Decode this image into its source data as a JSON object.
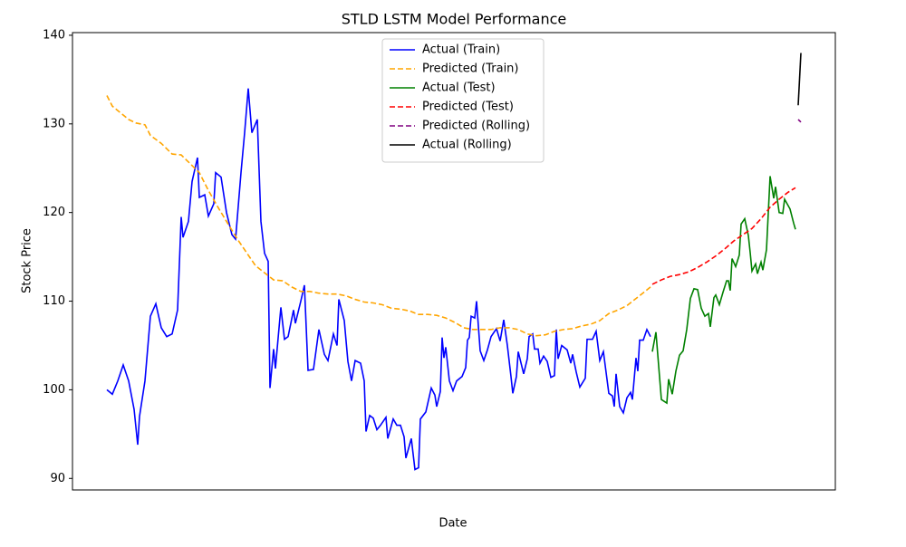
{
  "chart_data": {
    "type": "line",
    "title": "STLD LSTM Model Performance",
    "x_label": "Date",
    "y_label": "Stock Price",
    "xlim": [
      -38,
      804
    ],
    "ylim": [
      88.7,
      140.3
    ],
    "yticks": [
      90,
      100,
      110,
      120,
      130,
      140
    ],
    "legend": "upper center",
    "series": [
      {
        "name": "Actual (Train)",
        "color": "#0000ff",
        "linestyle": "-",
        "x": [
          0,
          6,
          12,
          18,
          24,
          30,
          34,
          36,
          42,
          48,
          54,
          60,
          66,
          72,
          78,
          82,
          84,
          90,
          94,
          100,
          102,
          108,
          112,
          118,
          120,
          126,
          132,
          138,
          142,
          148,
          152,
          156,
          160,
          166,
          170,
          174,
          178,
          180,
          184,
          186,
          192,
          196,
          200,
          206,
          208,
          214,
          218,
          222,
          228,
          234,
          240,
          244,
          250,
          254,
          256,
          262,
          266,
          270,
          274,
          280,
          284,
          286,
          290,
          294,
          298,
          302,
          308,
          310,
          316,
          320,
          324,
          328,
          330,
          336,
          340,
          344,
          346,
          352,
          358,
          362,
          364,
          368,
          370,
          372,
          374,
          378,
          382,
          386,
          392,
          396,
          398,
          400,
          402,
          406,
          408,
          412,
          416,
          420,
          424,
          430,
          434,
          438,
          442,
          446,
          448,
          452,
          454,
          460,
          464,
          466,
          470,
          472,
          476,
          478,
          482,
          486,
          490,
          494,
          496,
          498,
          502,
          508,
          512,
          514,
          518,
          522,
          528,
          530,
          536,
          540,
          544,
          548,
          554,
          558,
          560,
          562,
          566,
          570,
          574,
          578,
          580,
          584,
          586,
          588,
          592,
          596,
          600
        ],
        "values": [
          100,
          99.5,
          101,
          102.8,
          101,
          97.8,
          93.8,
          97,
          101,
          108.3,
          109.7,
          107,
          106,
          106.3,
          109,
          119.5,
          117.2,
          119,
          123.5,
          126.2,
          121.7,
          122,
          119.6,
          121,
          124.5,
          124,
          120,
          117.5,
          117,
          124.5,
          129,
          134,
          129,
          130.5,
          119,
          115.4,
          114.5,
          100.2,
          104.6,
          102.4,
          109.3,
          105.7,
          106,
          109,
          107.5,
          110,
          111.8,
          102.2,
          102.3,
          106.8,
          104,
          103.3,
          106.3,
          105,
          110.2,
          107.8,
          103.2,
          101,
          103.3,
          103,
          101,
          95.3,
          97.1,
          96.8,
          95.5,
          96,
          96.9,
          94.5,
          96.7,
          96,
          96,
          94.7,
          92.3,
          94.5,
          91,
          91.2,
          96.7,
          97.5,
          100.2,
          99.4,
          98.1,
          99.8,
          105.9,
          103.6,
          104.8,
          101,
          99.9,
          101,
          101.5,
          102.5,
          105.6,
          105.9,
          108.3,
          108.1,
          110,
          104.4,
          103.3,
          104.5,
          106,
          106.9,
          105.5,
          107.9,
          105,
          101.5,
          99.6,
          101.5,
          104.3,
          101.8,
          103.5,
          106,
          106.3,
          104.6,
          104.6,
          103,
          103.8,
          103.2,
          101.4,
          101.6,
          106.8,
          103.5,
          105,
          104.5,
          103,
          104,
          102,
          100.3,
          101.3,
          105.7,
          105.7,
          106.6,
          103.3,
          104.3,
          99.6,
          99.3,
          98.1,
          101.8,
          98.1,
          97.4,
          99.1,
          99.7,
          98.9,
          103.6,
          102.1,
          105.6,
          105.6,
          106.8,
          106
        ]
      },
      {
        "name": "Predicted (Train)",
        "color": "#ffa500",
        "linestyle": "--",
        "x": [
          0,
          6,
          12,
          18,
          24,
          32,
          42,
          48,
          60,
          72,
          82,
          92,
          102,
          112,
          122,
          132,
          144,
          154,
          164,
          174,
          184,
          194,
          204,
          214,
          224,
          234,
          244,
          254,
          264,
          274,
          284,
          294,
          304,
          314,
          324,
          334,
          344,
          354,
          364,
          374,
          384,
          394,
          404,
          414,
          424,
          434,
          444,
          454,
          464,
          474,
          484,
          494,
          504,
          514,
          524,
          534,
          544,
          554,
          564,
          574,
          584,
          594,
          600
        ],
        "values": [
          133.2,
          132,
          131.5,
          131,
          130.5,
          130.1,
          129.9,
          128.7,
          127.8,
          126.6,
          126.5,
          125.5,
          124.5,
          122.5,
          120.7,
          119,
          117,
          115.5,
          114,
          113.2,
          112.4,
          112.3,
          111.6,
          111.1,
          111.1,
          110.9,
          110.8,
          110.8,
          110.6,
          110.2,
          109.9,
          109.8,
          109.6,
          109.2,
          109.1,
          108.9,
          108.5,
          108.5,
          108.4,
          108.1,
          107.6,
          107,
          106.8,
          106.8,
          106.8,
          107,
          107,
          106.8,
          106.3,
          106.1,
          106.2,
          106.6,
          106.8,
          106.9,
          107.2,
          107.4,
          107.8,
          108.6,
          109,
          109.5,
          110.3,
          111.1,
          111.6
        ]
      },
      {
        "name": "Actual (Test)",
        "color": "#008000",
        "linestyle": "-",
        "x": [
          602,
          606,
          612,
          618,
          620,
          624,
          628,
          632,
          636,
          640,
          644,
          648,
          652,
          656,
          660,
          664,
          666,
          670,
          672,
          676,
          680,
          684,
          686,
          688,
          690,
          694,
          698,
          700,
          704,
          708,
          710,
          712,
          716,
          718,
          722,
          724,
          728,
          732,
          736,
          738,
          742,
          746,
          748,
          754,
          758,
          760
        ],
        "values": [
          104.3,
          106.5,
          98.9,
          98.5,
          101.2,
          99.5,
          102.1,
          103.9,
          104.4,
          106.8,
          110.3,
          111.4,
          111.3,
          109.2,
          108.3,
          108.6,
          107.1,
          110.4,
          110.7,
          109.6,
          111,
          112.3,
          112.3,
          111.2,
          114.8,
          113.9,
          115.2,
          118.7,
          119.3,
          117.4,
          115.5,
          113.4,
          114.2,
          113.1,
          114.4,
          113.5,
          115.8,
          124.1,
          121.6,
          122.9,
          120,
          119.9,
          121.5,
          120.4,
          118.8,
          118.1
        ]
      },
      {
        "name": "Predicted (Test)",
        "color": "#ff0000",
        "linestyle": "--",
        "x": [
          602,
          612,
          622,
          632,
          642,
          652,
          662,
          672,
          682,
          692,
          702,
          712,
          722,
          732,
          742,
          752,
          760
        ],
        "values": [
          111.9,
          112.4,
          112.8,
          113,
          113.3,
          113.8,
          114.4,
          115.1,
          115.9,
          116.8,
          117.5,
          118.2,
          119.3,
          120.6,
          121.5,
          122.3,
          122.8
        ]
      },
      {
        "name": "Predicted (Rolling)",
        "color": "#800080",
        "linestyle": "--",
        "x": [
          763,
          766
        ],
        "values": [
          130.5,
          130.2
        ]
      },
      {
        "name": "Actual (Rolling)",
        "color": "#000000",
        "linestyle": "-",
        "x": [
          763,
          766
        ],
        "values": [
          132.1,
          138
        ]
      }
    ]
  }
}
